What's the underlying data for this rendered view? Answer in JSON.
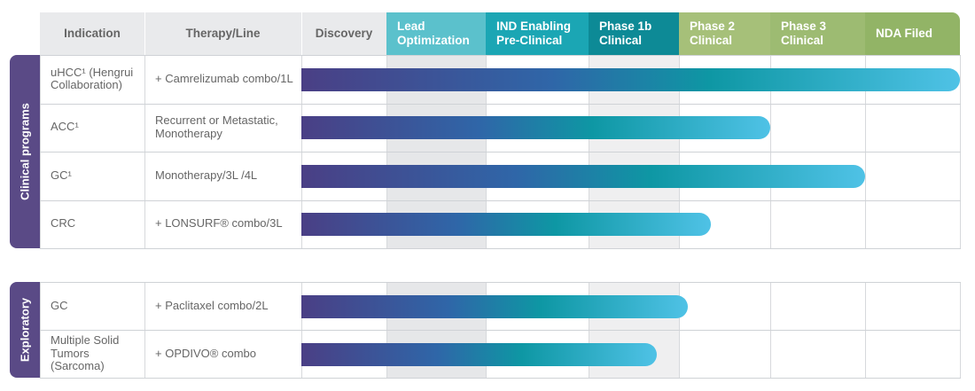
{
  "chart_data": {
    "type": "table",
    "title": "",
    "columns": {
      "indication": "Indication",
      "therapy": "Therapy/Line",
      "stages": [
        "Discovery",
        "Lead Optimization",
        "IND Enabling Pre-Clinical",
        "Phase 1b Clinical",
        "Phase 2 Clinical",
        "Phase 3 Clinical",
        "NDA Filed"
      ]
    },
    "stage_colors": [
      "#e9eaec",
      "#5bc1cc",
      "#1ba6b4",
      "#0d8a96",
      "#a6c079",
      "#9dbb72",
      "#92b466"
    ],
    "groups": [
      {
        "label": "Clinical programs",
        "rows": [
          {
            "indication": "uHCC¹ (Hengrui Collaboration)",
            "therapy": "+ Camrelizumab combo/1L",
            "progress": 7.0
          },
          {
            "indication": "ACC¹",
            "therapy": "Recurrent or Metastatic, Monotherapy",
            "progress": 5.0
          },
          {
            "indication": "GC¹",
            "therapy": "Monotherapy/3L /4L",
            "progress": 6.0
          },
          {
            "indication": "CRC",
            "therapy": "+ LONSURF® combo/3L",
            "progress": 4.35
          }
        ]
      },
      {
        "label": "Exploratory",
        "rows": [
          {
            "indication": "GC",
            "therapy": "+ Paclitaxel combo/2L",
            "progress": 4.1
          },
          {
            "indication": "Multiple Solid Tumors (Sarcoma)",
            "therapy": "+ OPDIVO® combo",
            "progress": 3.75
          }
        ]
      }
    ]
  }
}
